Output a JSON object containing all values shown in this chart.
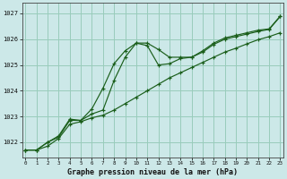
{
  "xlabel": "Graphe pression niveau de la mer (hPa)",
  "bg_color": "#cce8e8",
  "grid_color": "#99ccbb",
  "line_color": "#1a5e1a",
  "yticks": [
    1022,
    1023,
    1024,
    1025,
    1026,
    1027
  ],
  "xticks": [
    0,
    1,
    2,
    3,
    4,
    5,
    6,
    7,
    8,
    9,
    10,
    11,
    12,
    13,
    14,
    15,
    16,
    17,
    18,
    19,
    20,
    21,
    22,
    23
  ],
  "xlim": [
    -0.3,
    23.3
  ],
  "ylim": [
    1021.4,
    1027.4
  ],
  "line1_x": [
    0,
    1,
    2,
    3,
    4,
    5,
    6,
    7,
    8,
    9,
    10,
    11,
    12,
    13,
    14,
    15,
    16,
    17,
    18,
    19,
    20,
    21,
    22,
    23
  ],
  "line1_y": [
    1021.7,
    1021.7,
    1022.0,
    1022.2,
    1022.85,
    1022.85,
    1023.1,
    1023.25,
    1024.4,
    1025.3,
    1025.85,
    1025.85,
    1025.6,
    1025.3,
    1025.3,
    1025.3,
    1025.55,
    1025.85,
    1026.05,
    1026.15,
    1026.25,
    1026.35,
    1026.4,
    1026.9
  ],
  "line2_x": [
    0,
    1,
    2,
    3,
    4,
    5,
    6,
    7,
    8,
    9,
    10,
    11,
    12,
    13,
    14,
    15,
    16,
    17,
    18,
    19,
    20,
    21,
    22,
    23
  ],
  "line2_y": [
    1021.7,
    1021.7,
    1021.85,
    1022.15,
    1022.7,
    1022.8,
    1022.95,
    1023.05,
    1023.25,
    1023.5,
    1023.75,
    1024.0,
    1024.25,
    1024.5,
    1024.7,
    1024.9,
    1025.1,
    1025.3,
    1025.5,
    1025.65,
    1025.82,
    1025.98,
    1026.1,
    1026.25
  ],
  "line3_x": [
    0,
    1,
    2,
    3,
    4,
    5,
    6,
    7,
    8,
    9,
    10,
    11,
    12,
    13,
    14,
    15,
    16,
    17,
    18,
    19,
    20,
    21,
    22,
    23
  ],
  "line3_y": [
    1021.7,
    1021.7,
    1022.0,
    1022.25,
    1022.9,
    1022.85,
    1023.3,
    1024.1,
    1025.05,
    1025.55,
    1025.85,
    1025.75,
    1025.0,
    1025.05,
    1025.25,
    1025.3,
    1025.5,
    1025.8,
    1026.0,
    1026.1,
    1026.2,
    1026.3,
    1026.38,
    1026.88
  ]
}
